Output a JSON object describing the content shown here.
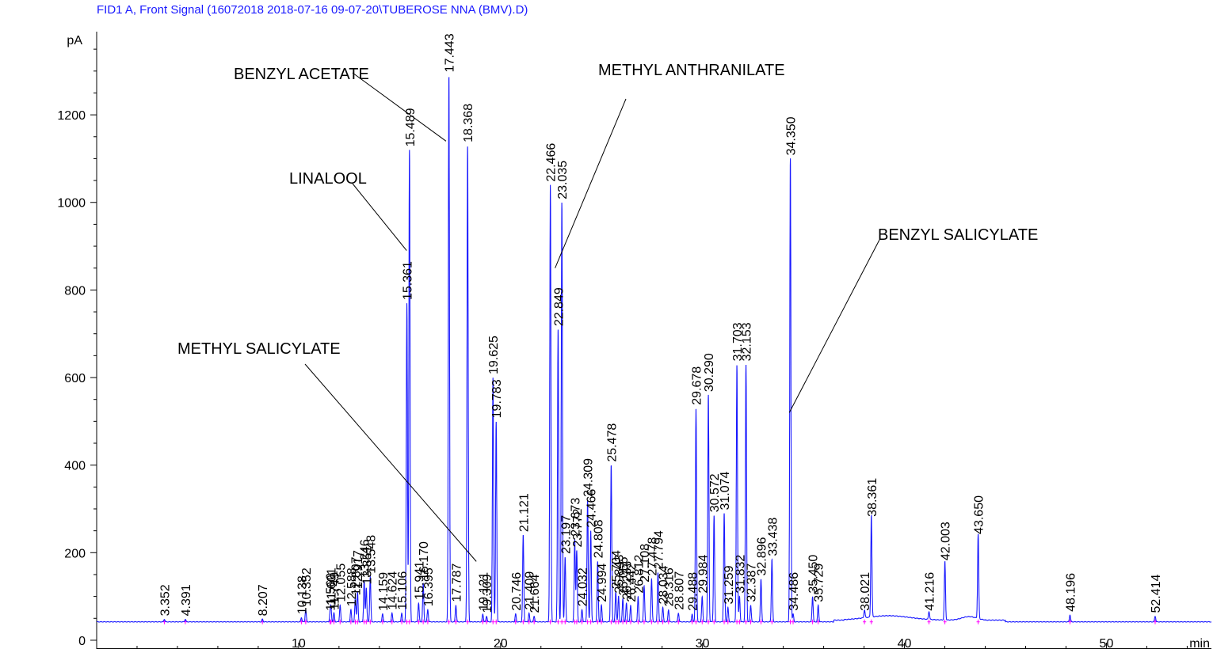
{
  "chart_data": {
    "type": "line",
    "title": "FID1 A, Front Signal (16072018 2018-07-16 09-07-20\\TUBEROSE NNA (BMV).D)",
    "xlabel": "min",
    "ylabel": "pA",
    "xlim": [
      0,
      55.2
    ],
    "ylim": [
      -20,
      1390
    ],
    "xticks": [
      10,
      20,
      30,
      40,
      50
    ],
    "yticks": [
      0,
      200,
      400,
      600,
      800,
      1000,
      1200
    ],
    "grid": false,
    "baseline": 42,
    "peaks": [
      {
        "rt": 3.352,
        "label": "3.352",
        "height": 48
      },
      {
        "rt": 4.391,
        "label": "4.391",
        "height": 48
      },
      {
        "rt": 8.207,
        "label": "8.207",
        "height": 48
      },
      {
        "rt": 10.138,
        "label": "10.138",
        "height": 52
      },
      {
        "rt": 10.352,
        "label": "10.352",
        "height": 70
      },
      {
        "rt": 11.56,
        "label": "11.560",
        "height": 60
      },
      {
        "rt": 11.601,
        "label": "11.601",
        "height": 72
      },
      {
        "rt": 11.749,
        "label": "11.749",
        "height": 62
      },
      {
        "rt": 12.055,
        "label": "12.055",
        "height": 80
      },
      {
        "rt": 12.588,
        "label": "12.588",
        "height": 70
      },
      {
        "rt": 12.807,
        "label": "12.807",
        "height": 95
      },
      {
        "rt": 12.917,
        "label": "12.917",
        "height": 110
      },
      {
        "rt": 13.246,
        "label": "13.246",
        "height": 135
      },
      {
        "rt": 13.351,
        "label": "13.351",
        "height": 120
      },
      {
        "rt": 13.548,
        "label": "13.548",
        "height": 145
      },
      {
        "rt": 14.159,
        "label": "14.159",
        "height": 60
      },
      {
        "rt": 14.624,
        "label": "14.624",
        "height": 62
      },
      {
        "rt": 15.106,
        "label": "15.106",
        "height": 62
      },
      {
        "rt": 15.361,
        "label": "15.361",
        "height": 770
      },
      {
        "rt": 15.489,
        "label": "15.489",
        "height": 1120
      },
      {
        "rt": 15.941,
        "label": "15.941",
        "height": 85
      },
      {
        "rt": 16.17,
        "label": "16.170",
        "height": 130
      },
      {
        "rt": 16.395,
        "label": "16.395",
        "height": 70
      },
      {
        "rt": 17.443,
        "label": "17.443",
        "height": 1290
      },
      {
        "rt": 17.787,
        "label": "17.787",
        "height": 80
      },
      {
        "rt": 18.368,
        "label": "18.368",
        "height": 1130
      },
      {
        "rt": 19.121,
        "label": "19.121",
        "height": 60
      },
      {
        "rt": 19.309,
        "label": "19.309",
        "height": 55
      },
      {
        "rt": 19.625,
        "label": "19.625",
        "height": 600
      },
      {
        "rt": 19.783,
        "label": "19.783",
        "height": 500
      },
      {
        "rt": 20.746,
        "label": "20.746",
        "height": 60
      },
      {
        "rt": 21.121,
        "label": "21.121",
        "height": 240
      },
      {
        "rt": 21.409,
        "label": "21.409",
        "height": 62
      },
      {
        "rt": 21.664,
        "label": "21.664",
        "height": 55
      },
      {
        "rt": 22.466,
        "label": "22.466",
        "height": 1040
      },
      {
        "rt": 22.849,
        "label": "22.849",
        "height": 710
      },
      {
        "rt": 23.035,
        "label": "23.035",
        "height": 1000
      },
      {
        "rt": 23.197,
        "label": "23.197",
        "height": 190
      },
      {
        "rt": 23.673,
        "label": "23.673",
        "height": 230
      },
      {
        "rt": 23.772,
        "label": "23.772",
        "height": 205
      },
      {
        "rt": 24.032,
        "label": "24.032",
        "height": 70
      },
      {
        "rt": 24.309,
        "label": "24.309",
        "height": 320
      },
      {
        "rt": 24.466,
        "label": "24.466",
        "height": 250
      },
      {
        "rt": 24.808,
        "label": "24.808",
        "height": 180
      },
      {
        "rt": 24.994,
        "label": "24.994",
        "height": 80
      },
      {
        "rt": 25.478,
        "label": "25.478",
        "height": 400
      },
      {
        "rt": 25.704,
        "label": "25.704",
        "height": 110
      },
      {
        "rt": 25.843,
        "label": "25.843",
        "height": 100
      },
      {
        "rt": 26.055,
        "label": "26.055",
        "height": 95
      },
      {
        "rt": 26.233,
        "label": "26.233",
        "height": 85
      },
      {
        "rt": 26.442,
        "label": "26.442",
        "height": 80
      },
      {
        "rt": 26.812,
        "label": "26.812",
        "height": 100
      },
      {
        "rt": 27.108,
        "label": "27.108",
        "height": 125
      },
      {
        "rt": 27.478,
        "label": "27.478",
        "height": 140
      },
      {
        "rt": 27.794,
        "label": "27.794",
        "height": 155
      },
      {
        "rt": 28.034,
        "label": "28.034",
        "height": 75
      },
      {
        "rt": 28.316,
        "label": "28.316",
        "height": 70
      },
      {
        "rt": 28.807,
        "label": "28.807",
        "height": 62
      },
      {
        "rt": 29.488,
        "label": "29.488",
        "height": 60
      },
      {
        "rt": 29.678,
        "label": "29.678",
        "height": 530
      },
      {
        "rt": 29.984,
        "label": "29.984",
        "height": 100
      },
      {
        "rt": 30.29,
        "label": "30.290",
        "height": 560
      },
      {
        "rt": 30.572,
        "label": "30.572",
        "height": 285
      },
      {
        "rt": 31.074,
        "label": "31.074",
        "height": 290
      },
      {
        "rt": 31.259,
        "label": "31.259",
        "height": 75
      },
      {
        "rt": 31.703,
        "label": "31.703",
        "height": 630
      },
      {
        "rt": 31.832,
        "label": "31.832",
        "height": 100
      },
      {
        "rt": 32.153,
        "label": "32.153",
        "height": 630
      },
      {
        "rt": 32.387,
        "label": "32.387",
        "height": 80
      },
      {
        "rt": 32.896,
        "label": "32.896",
        "height": 140
      },
      {
        "rt": 33.438,
        "label": "33.438",
        "height": 185
      },
      {
        "rt": 34.35,
        "label": "34.350",
        "height": 1100
      },
      {
        "rt": 34.486,
        "label": "34.486",
        "height": 60
      },
      {
        "rt": 35.45,
        "label": "35.450",
        "height": 100
      },
      {
        "rt": 35.729,
        "label": "35.729",
        "height": 80
      },
      {
        "rt": 38.021,
        "label": "38.021",
        "height": 60
      },
      {
        "rt": 38.361,
        "label": "38.361",
        "height": 275
      },
      {
        "rt": 41.216,
        "label": "41.216",
        "height": 60
      },
      {
        "rt": 42.003,
        "label": "42.003",
        "height": 175
      },
      {
        "rt": 43.65,
        "label": "43.650",
        "height": 235
      },
      {
        "rt": 48.196,
        "label": "48.196",
        "height": 58
      },
      {
        "rt": 52.414,
        "label": "52.414",
        "height": 55
      }
    ],
    "annotations": [
      {
        "text": "BENZYL ACETATE",
        "target_rt": 17.3,
        "target_y": 1140
      },
      {
        "text": "METHYL ANTHRANILATE",
        "target_rt": 22.7,
        "target_y": 850
      },
      {
        "text": "LINALOOL",
        "target_rt": 15.35,
        "target_y": 890
      },
      {
        "text": "BENZYL SALICYLATE",
        "target_rt": 34.3,
        "target_y": 520
      },
      {
        "text": "METHYL SALICYLATE",
        "target_rt": 18.8,
        "target_y": 180
      }
    ]
  },
  "colors": {
    "trace": "#1a1aff",
    "integration": "#ff00ff",
    "axis": "#000000",
    "header": "#1a1aff"
  }
}
